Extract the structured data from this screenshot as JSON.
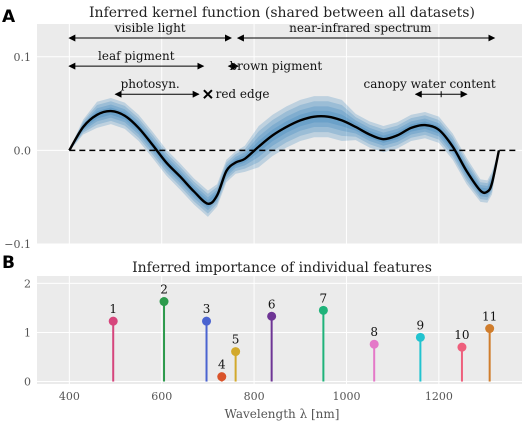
{
  "panels": {
    "a_letter": "A",
    "b_letter": "B"
  },
  "chart_data": [
    {
      "type": "line",
      "title": "Inferred kernel function (shared between all datasets)",
      "xlim": [
        330,
        1380
      ],
      "ylim": [
        -0.1,
        0.135
      ],
      "x_ticks": [
        400,
        600,
        800,
        1000,
        1200
      ],
      "y_ticks": [
        {
          "value": -0.1,
          "label": "−0.1"
        },
        {
          "value": 0.0,
          "label": "0.0"
        },
        {
          "value": 0.1,
          "label": "0.1"
        }
      ],
      "grid": true,
      "kernel": {
        "x": [
          400,
          430,
          460,
          490,
          520,
          550,
          580,
          610,
          640,
          670,
          700,
          720,
          740,
          760,
          780,
          810,
          840,
          870,
          900,
          930,
          960,
          990,
          1020,
          1050,
          1080,
          1110,
          1140,
          1170,
          1200,
          1230,
          1260,
          1290,
          1305,
          1315,
          1330
        ],
        "y": [
          0.0,
          0.025,
          0.038,
          0.042,
          0.037,
          0.024,
          0.006,
          -0.013,
          -0.028,
          -0.044,
          -0.057,
          -0.048,
          -0.022,
          -0.013,
          -0.009,
          0.004,
          0.016,
          0.025,
          0.032,
          0.036,
          0.036,
          0.032,
          0.025,
          0.017,
          0.012,
          0.016,
          0.024,
          0.027,
          0.022,
          0.004,
          -0.022,
          -0.043,
          -0.044,
          -0.035,
          0.0
        ]
      },
      "zero_line": 0.0,
      "annotations": [
        {
          "label": "visible light",
          "x_start": 400,
          "x_end": 750,
          "y": 0.12,
          "kind": "double-arrow",
          "label_at": 575
        },
        {
          "label": "near-infrared spectrum",
          "x_start": 765,
          "x_end": 1320,
          "y": 0.12,
          "kind": "double-arrow",
          "label_at": 1030
        },
        {
          "label": "leaf pigment",
          "x_start": 400,
          "x_end": 690,
          "y": 0.09,
          "kind": "double-arrow",
          "label_at": 545
        },
        {
          "label": "brown pigment",
          "x_start": 745,
          "x_end": 765,
          "y": 0.09,
          "kind": "double-arrow",
          "label_at": 847
        },
        {
          "label": "photosyn.",
          "x_start": 500,
          "x_end": 680,
          "y": 0.06,
          "kind": "double-arrow",
          "label_at": 575
        },
        {
          "label": "red edge",
          "x_start": 692,
          "x_end": 708,
          "y": 0.06,
          "kind": "marker",
          "label_at": 775
        },
        {
          "label": "canopy water content",
          "x_start": 1150,
          "x_end": 1260,
          "y": 0.06,
          "kind": "double-arrow",
          "label_at": 1180
        }
      ]
    },
    {
      "type": "bar",
      "title": "Inferred importance of individual features",
      "xlabel": "Wavelength λ [nm]",
      "xlim": [
        330,
        1380
      ],
      "ylim": [
        -0.05,
        2.15
      ],
      "x_ticks": [
        400,
        600,
        800,
        1000,
        1200
      ],
      "y_ticks": [
        {
          "value": 0,
          "label": "0"
        },
        {
          "value": 1,
          "label": "1"
        },
        {
          "value": 2,
          "label": "2"
        }
      ],
      "grid": true,
      "features": [
        {
          "label": "1",
          "x": 495,
          "value": 1.23,
          "color": "#d6457c"
        },
        {
          "label": "2",
          "x": 605,
          "value": 1.63,
          "color": "#2d9a4c"
        },
        {
          "label": "3",
          "x": 697,
          "value": 1.23,
          "color": "#4a63d0"
        },
        {
          "label": "4",
          "x": 730,
          "value": 0.1,
          "color": "#d9532a"
        },
        {
          "label": "5",
          "x": 760,
          "value": 0.61,
          "color": "#d2a92c"
        },
        {
          "label": "6",
          "x": 838,
          "value": 1.33,
          "color": "#6e3595"
        },
        {
          "label": "7",
          "x": 950,
          "value": 1.45,
          "color": "#1fb37a"
        },
        {
          "label": "8",
          "x": 1060,
          "value": 0.76,
          "color": "#e478c8"
        },
        {
          "label": "9",
          "x": 1160,
          "value": 0.9,
          "color": "#22c3cf"
        },
        {
          "label": "10",
          "x": 1250,
          "value": 0.7,
          "color": "#ee5f7c"
        },
        {
          "label": "11",
          "x": 1310,
          "value": 1.08,
          "color": "#d07d2c"
        }
      ]
    }
  ]
}
